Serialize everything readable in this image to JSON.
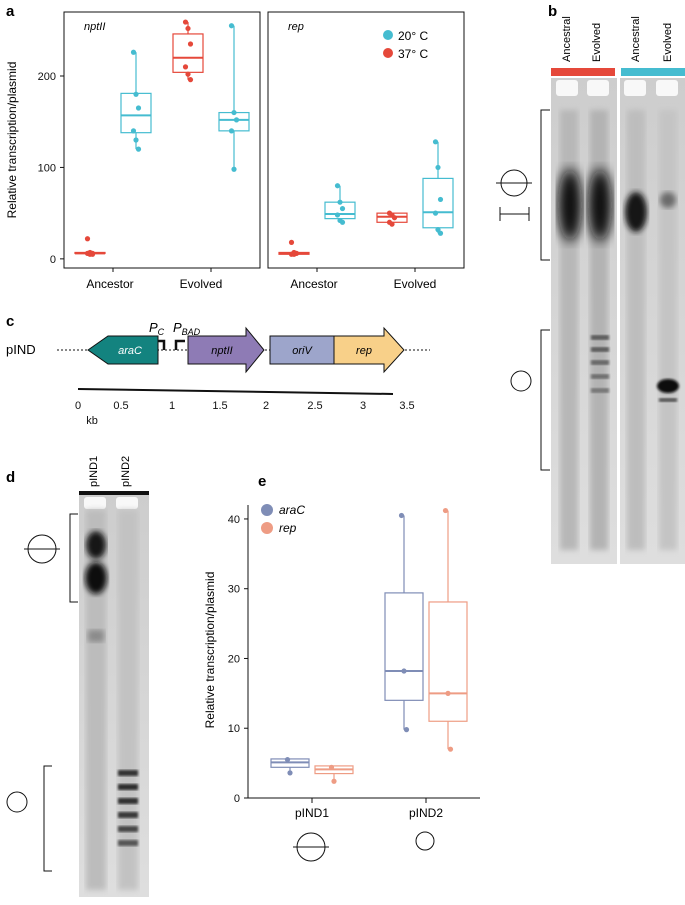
{
  "panels": {
    "a": "a",
    "b": "b",
    "c": "c",
    "d": "d",
    "e": "e"
  },
  "colors": {
    "c20": "#45BCD0",
    "c37": "#E5483A",
    "araC": "#7F8DB6",
    "rep": "#EE9C84",
    "arac_gene": "#13837F",
    "nptII_gene": "#8E7BB5",
    "oriV_gene": "#9DA5CB",
    "rep_gene": "#F8D089"
  },
  "chart_a": {
    "type": "box",
    "ylabel": "Relative transcription/plasmid",
    "ylim": [
      -10,
      270
    ],
    "yticks": [
      0,
      100,
      200
    ],
    "legend": {
      "placement": "top-right",
      "entries": [
        {
          "name": "20° C",
          "color": "#45BCD0"
        },
        {
          "name": "37° C",
          "color": "#E5483A"
        }
      ]
    },
    "categories": [
      "Ancestor",
      "Evolved"
    ],
    "facets": [
      {
        "title": "nptII",
        "boxes": [
          {
            "cat": "Ancestor",
            "group": "37° C",
            "q1": 6,
            "med": 6,
            "q3": 7,
            "lo": 5,
            "hi": 7,
            "pts": [
              22,
              7,
              6,
              6,
              5,
              5
            ]
          },
          {
            "cat": "Ancestor",
            "group": "20° C",
            "q1": 138,
            "med": 157,
            "q3": 181,
            "lo": 120,
            "hi": 226,
            "pts": [
              226,
              180,
              165,
              140,
              130,
              120
            ]
          },
          {
            "cat": "Evolved",
            "group": "37° C",
            "q1": 204,
            "med": 220,
            "q3": 246,
            "lo": 196,
            "hi": 259,
            "pts": [
              259,
              252,
              235,
              210,
              202,
              196
            ]
          },
          {
            "cat": "Evolved",
            "group": "20° C",
            "q1": 140,
            "med": 152,
            "q3": 160,
            "lo": 98,
            "hi": 255,
            "pts": [
              255,
              160,
              152,
              140,
              98
            ]
          }
        ]
      },
      {
        "title": "rep",
        "boxes": [
          {
            "cat": "Ancestor",
            "group": "37° C",
            "q1": 5,
            "med": 6,
            "q3": 7,
            "lo": 5,
            "hi": 7,
            "pts": [
              18,
              7,
              6,
              5,
              5
            ]
          },
          {
            "cat": "Ancestor",
            "group": "20° C",
            "q1": 44,
            "med": 49,
            "q3": 62,
            "lo": 40,
            "hi": 80,
            "pts": [
              80,
              62,
              55,
              48,
              42,
              40
            ]
          },
          {
            "cat": "Evolved",
            "group": "37° C",
            "q1": 40,
            "med": 46,
            "q3": 50,
            "lo": 38,
            "hi": 50,
            "pts": [
              50,
              48,
              45,
              40,
              38
            ]
          },
          {
            "cat": "Evolved",
            "group": "20° C",
            "q1": 34,
            "med": 51,
            "q3": 88,
            "lo": 28,
            "hi": 128,
            "pts": [
              128,
              100,
              65,
              50,
              32,
              28
            ]
          }
        ]
      }
    ]
  },
  "chart_data": {
    "type": "box",
    "ylabel": "Relative transcription/plasmid",
    "ylim": [
      0,
      42
    ],
    "yticks": [
      0,
      10,
      20,
      30,
      40
    ],
    "categories": [
      "pIND1",
      "pIND2"
    ],
    "legend": {
      "placement": "top-left",
      "entries": [
        {
          "name": "araC",
          "color": "#7F8DB6"
        },
        {
          "name": "rep",
          "color": "#EE9C84"
        }
      ]
    },
    "series": [
      {
        "name": "araC",
        "boxes": [
          {
            "cat": "pIND1",
            "q1": 4.4,
            "med": 5.1,
            "q3": 5.6,
            "lo": 3.5,
            "hi": 5.6,
            "pts": [
              5.5,
              3.6
            ]
          },
          {
            "cat": "pIND2",
            "q1": 14,
            "med": 18.2,
            "q3": 29.4,
            "lo": 9.8,
            "hi": 40.5,
            "pts": [
              40.5,
              18.2,
              9.8
            ]
          }
        ]
      },
      {
        "name": "rep",
        "boxes": [
          {
            "cat": "pIND1",
            "q1": 3.5,
            "med": 4.1,
            "q3": 4.6,
            "lo": 2.3,
            "hi": 4.6,
            "pts": [
              4.4,
              2.4
            ]
          },
          {
            "cat": "pIND2",
            "q1": 11,
            "med": 15,
            "q3": 28.1,
            "lo": 7,
            "hi": 41.2,
            "pts": [
              41.2,
              15,
              7
            ]
          }
        ]
      }
    ]
  },
  "gel_b": {
    "lanes": [
      "Ancestral",
      "Evolved",
      "Ancestral",
      "Evolved"
    ]
  },
  "gel_d": {
    "lanes": [
      "pIND1",
      "pIND2"
    ]
  },
  "map_c": {
    "plasmid": "pIND",
    "promoter_pc": "P",
    "promoter_pc_sub": "C",
    "promoter_pbad": "P",
    "promoter_pbad_sub": "BAD",
    "genes": [
      "araC",
      "nptII",
      "oriV",
      "rep"
    ],
    "ticks": [
      "0",
      "0.5",
      "1",
      "1.5",
      "2",
      "2.5",
      "3",
      "3.5"
    ],
    "unit": "kb"
  }
}
